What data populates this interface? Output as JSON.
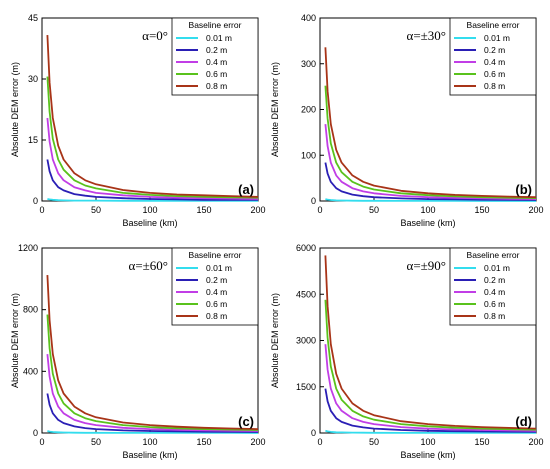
{
  "colors": {
    "0.01 m": "#33ddee",
    "0.2 m": "#2a1fb5",
    "0.4 m": "#c13ee6",
    "0.6 m": "#59c21c",
    "0.8 m": "#a83418"
  },
  "chart_data": [
    {
      "type": "line",
      "panel_label": "(a)",
      "annotation": "α=0°",
      "xlabel": "Baseline (km)",
      "ylabel": "Absolute DEM error (m)",
      "xlim": [
        0,
        200
      ],
      "ylim": [
        0,
        45
      ],
      "x_ticks": [
        0,
        50,
        100,
        150,
        200
      ],
      "y_ticks": [
        0,
        15,
        30,
        45
      ],
      "legend": {
        "title": "Baseline error",
        "position": "top-right"
      },
      "x": [
        5,
        7,
        10,
        15,
        20,
        30,
        40,
        50,
        75,
        100,
        125,
        150,
        175,
        200
      ],
      "series": [
        {
          "name": "0.01 m",
          "values": [
            0.5,
            0.4,
            0.3,
            0.2,
            0.15,
            0.1,
            0.1,
            0.1,
            0.05,
            0.05,
            0.05,
            0.05,
            0.05,
            0.05
          ]
        },
        {
          "name": "0.2 m",
          "values": [
            10.2,
            7.3,
            5.1,
            3.4,
            2.6,
            1.7,
            1.3,
            1.0,
            0.7,
            0.5,
            0.4,
            0.3,
            0.3,
            0.3
          ]
        },
        {
          "name": "0.4 m",
          "values": [
            20.4,
            14.6,
            10.2,
            6.8,
            5.1,
            3.4,
            2.6,
            2.0,
            1.4,
            1.0,
            0.8,
            0.7,
            0.6,
            0.5
          ]
        },
        {
          "name": "0.6 m",
          "values": [
            30.6,
            21.9,
            15.3,
            10.2,
            7.7,
            5.1,
            3.8,
            3.1,
            2.0,
            1.5,
            1.2,
            1.0,
            0.9,
            0.8
          ]
        },
        {
          "name": "0.8 m",
          "values": [
            40.8,
            29.1,
            20.4,
            13.6,
            10.2,
            6.8,
            5.1,
            4.1,
            2.7,
            2.0,
            1.6,
            1.4,
            1.2,
            1.0
          ]
        }
      ]
    },
    {
      "type": "line",
      "panel_label": "(b)",
      "annotation": "α=±30°",
      "xlabel": "Baseline (km)",
      "ylabel": "Absolute DEM error (m)",
      "xlim": [
        0,
        200
      ],
      "ylim": [
        0,
        400
      ],
      "x_ticks": [
        0,
        50,
        100,
        150,
        200
      ],
      "y_ticks": [
        0,
        100,
        200,
        300,
        400
      ],
      "legend": {
        "title": "Baseline error",
        "position": "top-right"
      },
      "x": [
        5,
        7,
        10,
        15,
        20,
        30,
        40,
        50,
        75,
        100,
        125,
        150,
        175,
        200
      ],
      "series": [
        {
          "name": "0.01 m",
          "values": [
            4.2,
            3.0,
            2.1,
            1.4,
            1.1,
            0.7,
            0.5,
            0.4,
            0.3,
            0.2,
            0.2,
            0.1,
            0.1,
            0.1
          ]
        },
        {
          "name": "0.2 m",
          "values": [
            84,
            60,
            42,
            28,
            21,
            14,
            10.5,
            8.4,
            5.6,
            4.2,
            3.4,
            2.8,
            2.4,
            2.1
          ]
        },
        {
          "name": "0.4 m",
          "values": [
            168,
            120,
            84,
            56,
            42,
            28,
            21,
            16.8,
            11.2,
            8.4,
            6.7,
            5.6,
            4.8,
            4.2
          ]
        },
        {
          "name": "0.6 m",
          "values": [
            252,
            180,
            126,
            84,
            63,
            42,
            31.5,
            25.2,
            16.8,
            12.6,
            10.1,
            8.4,
            7.2,
            6.3
          ]
        },
        {
          "name": "0.8 m",
          "values": [
            336,
            240,
            168,
            112,
            84,
            56,
            42,
            33.6,
            22.4,
            16.8,
            13.4,
            11.2,
            9.6,
            8.4
          ]
        }
      ]
    },
    {
      "type": "line",
      "panel_label": "(c)",
      "annotation": "α=±60°",
      "xlabel": "Baseline (km)",
      "ylabel": "Absolute DEM error (m)",
      "xlim": [
        0,
        200
      ],
      "ylim": [
        0,
        1200
      ],
      "x_ticks": [
        0,
        50,
        100,
        150,
        200
      ],
      "y_ticks": [
        0,
        400,
        800,
        1200
      ],
      "legend": {
        "title": "Baseline error",
        "position": "top-right"
      },
      "x": [
        5,
        7,
        10,
        15,
        20,
        30,
        40,
        50,
        75,
        100,
        125,
        150,
        175,
        200
      ],
      "series": [
        {
          "name": "0.01 m",
          "values": [
            12.8,
            9.1,
            6.4,
            4.3,
            3.2,
            2.1,
            1.6,
            1.3,
            0.9,
            0.6,
            0.5,
            0.4,
            0.4,
            0.3
          ]
        },
        {
          "name": "0.2 m",
          "values": [
            256,
            183,
            128,
            85,
            64,
            43,
            32,
            25.6,
            17.1,
            12.8,
            10.2,
            8.5,
            7.3,
            6.4
          ]
        },
        {
          "name": "0.4 m",
          "values": [
            512,
            366,
            256,
            171,
            128,
            85,
            64,
            51,
            34,
            25.6,
            20.5,
            17.1,
            14.6,
            12.8
          ]
        },
        {
          "name": "0.6 m",
          "values": [
            768,
            549,
            384,
            256,
            192,
            128,
            96,
            77,
            51,
            38.4,
            30.7,
            25.6,
            21.9,
            19.2
          ]
        },
        {
          "name": "0.8 m",
          "values": [
            1024,
            731,
            512,
            341,
            256,
            171,
            128,
            102,
            68,
            51,
            41,
            34,
            29,
            25.6
          ]
        }
      ]
    },
    {
      "type": "line",
      "panel_label": "(d)",
      "annotation": "α=±90°",
      "xlabel": "Baseline (km)",
      "ylabel": "Absolute DEM error (m)",
      "xlim": [
        0,
        200
      ],
      "ylim": [
        0,
        6000
      ],
      "x_ticks": [
        0,
        50,
        100,
        150,
        200
      ],
      "y_ticks": [
        0,
        1500,
        3000,
        4500,
        6000
      ],
      "legend": {
        "title": "Baseline error",
        "position": "top-right"
      },
      "x": [
        5,
        7,
        10,
        15,
        20,
        30,
        40,
        50,
        75,
        100,
        125,
        150,
        175,
        200
      ],
      "series": [
        {
          "name": "0.01 m",
          "values": [
            72,
            51,
            36,
            24,
            18,
            12,
            9,
            7.2,
            4.8,
            3.6,
            2.9,
            2.4,
            2.1,
            1.8
          ]
        },
        {
          "name": "0.2 m",
          "values": [
            1440,
            1029,
            720,
            480,
            360,
            240,
            180,
            144,
            96,
            72,
            58,
            48,
            41,
            36
          ]
        },
        {
          "name": "0.4 m",
          "values": [
            2880,
            2057,
            1440,
            960,
            720,
            480,
            360,
            288,
            192,
            144,
            115,
            96,
            82,
            72
          ]
        },
        {
          "name": "0.6 m",
          "values": [
            4320,
            3086,
            2160,
            1440,
            1080,
            720,
            540,
            432,
            288,
            216,
            173,
            144,
            123,
            108
          ]
        },
        {
          "name": "0.8 m",
          "values": [
            5760,
            4114,
            2880,
            1920,
            1440,
            960,
            720,
            576,
            384,
            288,
            230,
            192,
            165,
            144
          ]
        }
      ]
    }
  ]
}
